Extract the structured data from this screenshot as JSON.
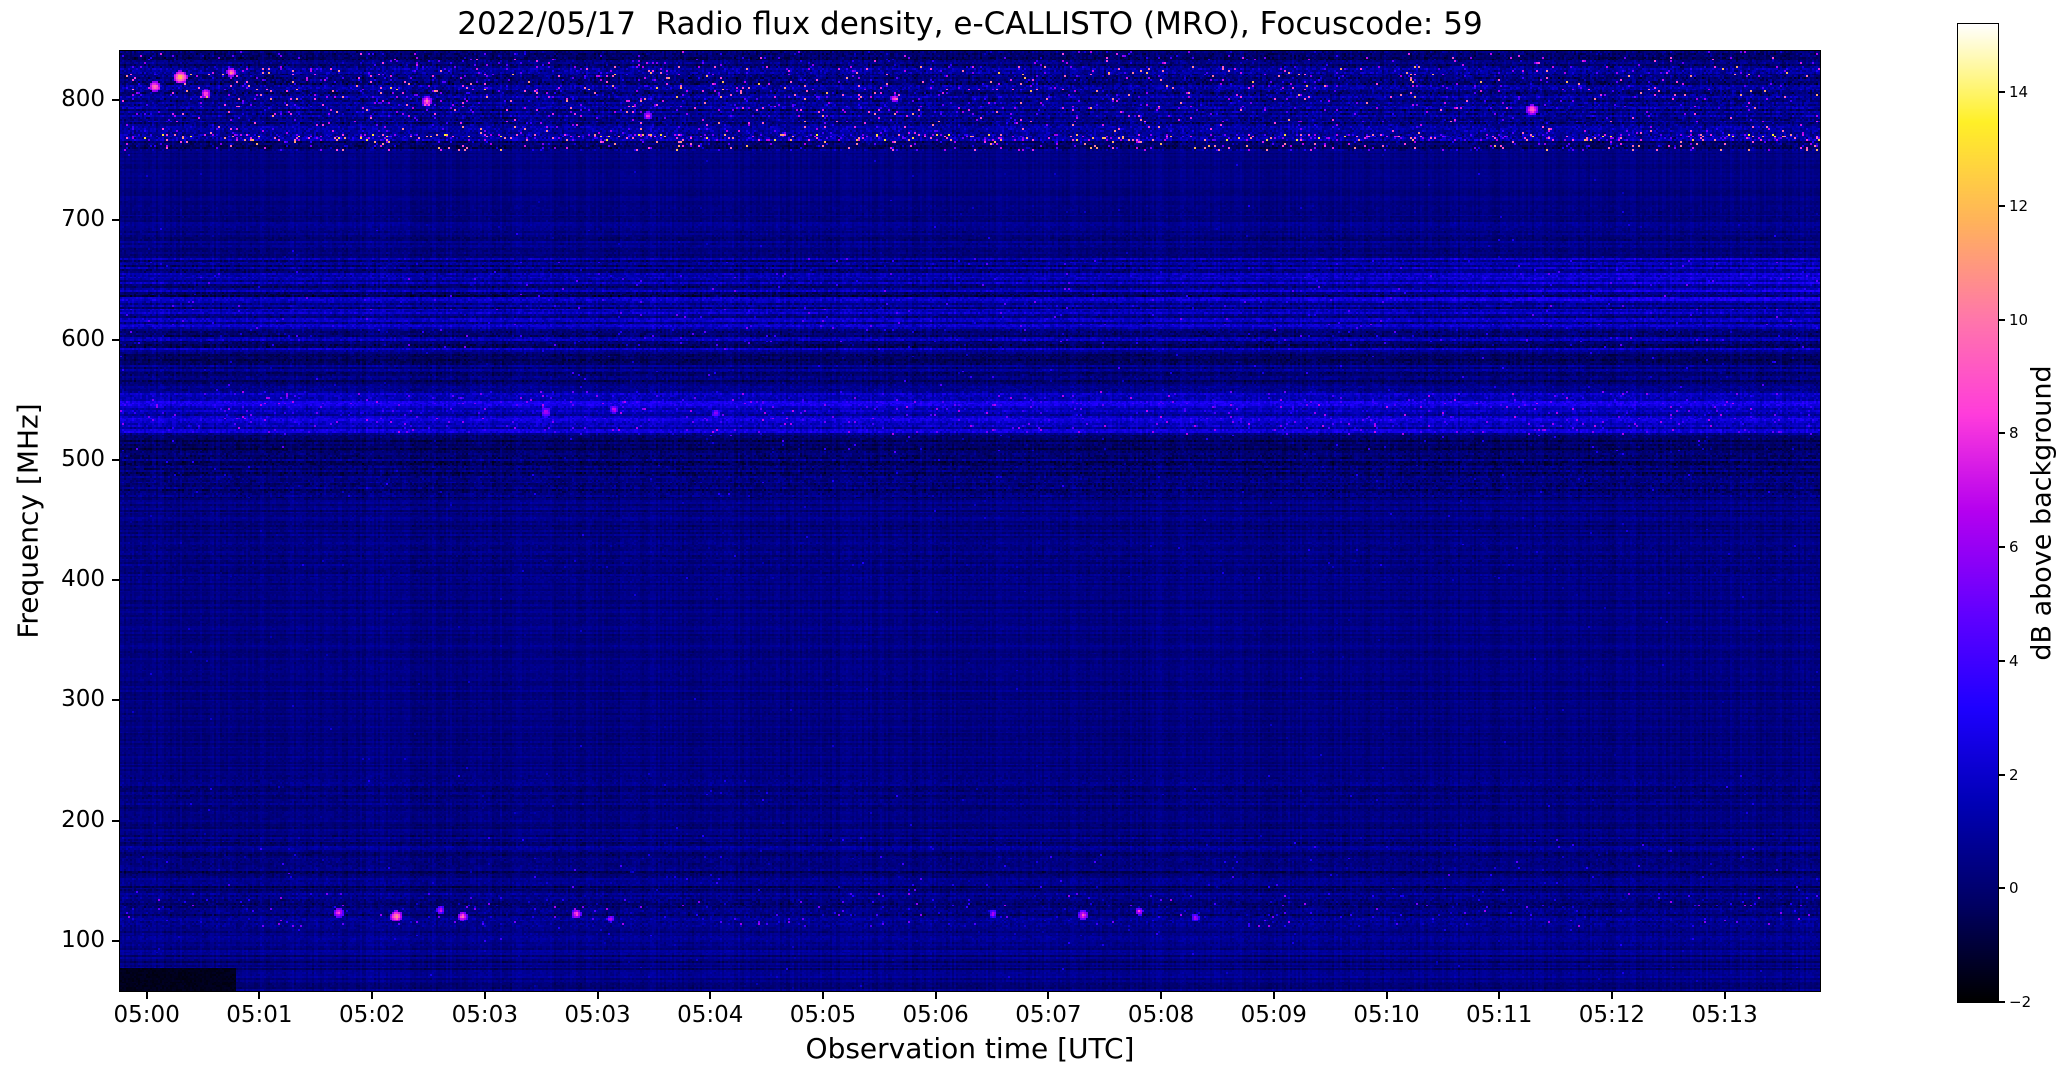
{
  "seed": 20220517,
  "chart_data": {
    "type": "heatmap",
    "title": "2022/05/17  Radio flux density, e-CALLISTO (MRO), Focuscode: 59",
    "xlabel": "Observation time [UTC]",
    "ylabel": "Frequency [MHz]",
    "x_ticks": [
      "05:00",
      "05:01",
      "05:02",
      "05:03",
      "05:03",
      "05:04",
      "05:05",
      "05:06",
      "05:07",
      "05:08",
      "05:09",
      "05:10",
      "05:11",
      "05:12",
      "05:13"
    ],
    "y_ticks": [
      100,
      200,
      300,
      400,
      500,
      600,
      700,
      800
    ],
    "freq_range": [
      58,
      841
    ],
    "grid": false,
    "colorbar": {
      "label": "dB above background",
      "ticks": [
        -2,
        0,
        2,
        4,
        6,
        8,
        10,
        12,
        14
      ],
      "vmin": -2,
      "vmax": 15.2,
      "colormap": [
        {
          "t": 0.0,
          "c": "#000000"
        },
        {
          "t": 0.1,
          "c": "#000064"
        },
        {
          "t": 0.2,
          "c": "#0000b4"
        },
        {
          "t": 0.3,
          "c": "#1e00ff"
        },
        {
          "t": 0.4,
          "c": "#6400ff"
        },
        {
          "t": 0.5,
          "c": "#b400f0"
        },
        {
          "t": 0.6,
          "c": "#ff3cdc"
        },
        {
          "t": 0.7,
          "c": "#ff78aa"
        },
        {
          "t": 0.8,
          "c": "#ffb45a"
        },
        {
          "t": 0.9,
          "c": "#fff028"
        },
        {
          "t": 1.0,
          "c": "#ffffff"
        }
      ]
    },
    "bands": [
      {
        "f0": 828,
        "f1": 841,
        "base": 0.1,
        "rowVar": 0.6,
        "noise": 1.0,
        "sp": 0.05,
        "spMax": 9,
        "fade": 0.4
      },
      {
        "f0": 800,
        "f1": 828,
        "base": 0.6,
        "rowVar": 0.8,
        "noise": 1.4,
        "sp": 0.09,
        "spMax": 12,
        "fade": 0.5
      },
      {
        "f0": 772,
        "f1": 800,
        "base": 0.5,
        "rowVar": 0.9,
        "noise": 1.3,
        "sp": 0.07,
        "spMax": 11,
        "fade": 0.4
      },
      {
        "f0": 766,
        "f1": 772,
        "base": 1.2,
        "rowVar": 0.5,
        "noise": 1.6,
        "sp": 0.22,
        "spMax": 13.5
      },
      {
        "f0": 758,
        "f1": 766,
        "base": 0.0,
        "rowVar": 0.6,
        "noise": 1.0,
        "sp": 0.1,
        "spMax": 12
      },
      {
        "f0": 712,
        "f1": 758,
        "base": 0.35,
        "rowVar": 0.25,
        "noise": 0.25,
        "sp": 0.002,
        "spMax": 3
      },
      {
        "f0": 695,
        "f1": 712,
        "base": 0.45,
        "rowVar": 0.45,
        "noise": 0.4,
        "sp": 0.004,
        "spMax": 3.5
      },
      {
        "f0": 668,
        "f1": 695,
        "base": 0.4,
        "rowVar": 0.5,
        "noise": 0.5,
        "sp": 0.004,
        "spMax": 3.5
      },
      {
        "f0": 632,
        "f1": 668,
        "base": 0.7,
        "rowVar": 1.6,
        "noise": 0.9,
        "sp": 0.015,
        "spMax": 5.5,
        "xboost": 1.0
      },
      {
        "f0": 592,
        "f1": 632,
        "base": 0.9,
        "rowVar": 1.4,
        "noise": 0.9,
        "sp": 0.02,
        "spMax": 5.5
      },
      {
        "f0": 558,
        "f1": 592,
        "base": 0.2,
        "rowVar": 0.9,
        "noise": 0.7,
        "sp": 0.008,
        "spMax": 4.5
      },
      {
        "f0": 522,
        "f1": 558,
        "base": 1.7,
        "rowVar": 1.1,
        "noise": 0.9,
        "sp": 0.05,
        "spMax": 7
      },
      {
        "f0": 506,
        "f1": 522,
        "base": -0.4,
        "rowVar": 0.9,
        "noise": 0.7,
        "sp": 0.015,
        "spMax": 5
      },
      {
        "f0": 468,
        "f1": 506,
        "base": 0.1,
        "rowVar": 0.7,
        "noise": 0.9,
        "sp": 0.008,
        "spMax": 3.5
      },
      {
        "f0": 432,
        "f1": 468,
        "base": 0.3,
        "rowVar": 0.5,
        "noise": 0.45,
        "sp": 0.004,
        "spMax": 3
      },
      {
        "f0": 398,
        "f1": 432,
        "base": 0.45,
        "rowVar": 0.5,
        "noise": 0.5,
        "sp": 0.005,
        "spMax": 3
      },
      {
        "f0": 238,
        "f1": 398,
        "base": 0.35,
        "rowVar": 0.4,
        "noise": 0.33,
        "sp": 0.002,
        "spMax": 2.5
      },
      {
        "f0": 212,
        "f1": 238,
        "base": 0.4,
        "rowVar": 0.55,
        "noise": 0.55,
        "sp": 0.006,
        "spMax": 3.5
      },
      {
        "f0": 188,
        "f1": 212,
        "base": 0.3,
        "rowVar": 0.45,
        "noise": 0.4,
        "sp": 0.003,
        "spMax": 3
      },
      {
        "f0": 168,
        "f1": 188,
        "base": 0.35,
        "rowVar": 0.7,
        "noise": 0.6,
        "sp": 0.01,
        "spMax": 4
      },
      {
        "f0": 140,
        "f1": 168,
        "base": 0.1,
        "rowVar": 0.8,
        "noise": 0.6,
        "sp": 0.01,
        "spMax": 5
      },
      {
        "f0": 112,
        "f1": 140,
        "base": 0.4,
        "rowVar": 0.7,
        "noise": 0.8,
        "sp": 0.03,
        "spMax": 6.5
      },
      {
        "f0": 96,
        "f1": 112,
        "base": 0.55,
        "rowVar": 0.5,
        "noise": 0.5,
        "sp": 0.006,
        "spMax": 4
      },
      {
        "f0": 45,
        "f1": 96,
        "base": 0.3,
        "rowVar": 0.7,
        "noise": 0.4,
        "sp": 0.003,
        "spMax": 3
      }
    ],
    "hotspots": [
      {
        "x": 0.02,
        "f": 812,
        "r": 3.0,
        "v": 11.0
      },
      {
        "x": 0.035,
        "f": 820,
        "r": 3.5,
        "v": 13.0
      },
      {
        "x": 0.05,
        "f": 806,
        "r": 2.5,
        "v": 10.0
      },
      {
        "x": 0.065,
        "f": 824,
        "r": 2.5,
        "v": 11.0
      },
      {
        "x": 0.18,
        "f": 800,
        "r": 2.5,
        "v": 10.5
      },
      {
        "x": 0.31,
        "f": 788,
        "r": 2.0,
        "v": 9.0
      },
      {
        "x": 0.455,
        "f": 802,
        "r": 2.0,
        "v": 9.5
      },
      {
        "x": 0.83,
        "f": 793,
        "r": 3.0,
        "v": 10.5
      },
      {
        "x": 0.25,
        "f": 541,
        "r": 2.5,
        "v": 7.5
      },
      {
        "x": 0.29,
        "f": 543,
        "r": 2.0,
        "v": 8.0
      },
      {
        "x": 0.35,
        "f": 540,
        "r": 2.0,
        "v": 7.0
      },
      {
        "x": 0.128,
        "f": 124,
        "r": 2.5,
        "v": 9.0
      },
      {
        "x": 0.162,
        "f": 121,
        "r": 3.0,
        "v": 11.5
      },
      {
        "x": 0.188,
        "f": 126,
        "r": 2.0,
        "v": 8.0
      },
      {
        "x": 0.201,
        "f": 121,
        "r": 2.5,
        "v": 10.0
      },
      {
        "x": 0.268,
        "f": 123,
        "r": 2.5,
        "v": 9.5
      },
      {
        "x": 0.288,
        "f": 119,
        "r": 2.0,
        "v": 7.5
      },
      {
        "x": 0.513,
        "f": 123,
        "r": 2.0,
        "v": 7.0
      },
      {
        "x": 0.566,
        "f": 122,
        "r": 2.5,
        "v": 9.0
      },
      {
        "x": 0.599,
        "f": 125,
        "r": 2.0,
        "v": 8.5
      },
      {
        "x": 0.632,
        "f": 120,
        "r": 2.0,
        "v": 7.5
      }
    ],
    "features": [
      {
        "x0": 0.0,
        "x1": 0.068,
        "f0": 58,
        "f1": 77,
        "value": -1.55
      }
    ]
  }
}
